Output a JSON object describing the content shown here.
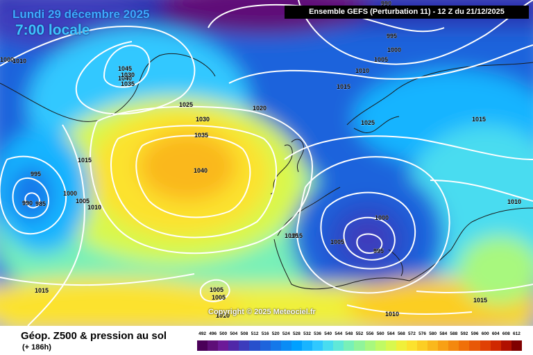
{
  "header": {
    "date": "Lundi 29 décembre 2025",
    "local_time": "7:00 locale",
    "run_info": "Ensemble GEFS  (Perturbation 11)  -  12 Z du 21/12/2025"
  },
  "footer": {
    "variable": "Géop. Z500 & pression au sol",
    "forecast_step": "(+ 186h)",
    "copyright": "Copyright © 2025 Meteociel.fr"
  },
  "isobar_labels": [
    "990",
    "995",
    "1000",
    "1005",
    "1010",
    "1015",
    "1000",
    "1010",
    "1045",
    "1040",
    "1035",
    "1030",
    "1025",
    "1020",
    "1015",
    "1025",
    "1030",
    "1035",
    "1040",
    "1015",
    "995",
    "1000",
    "1005",
    "1010",
    "990",
    "985",
    "1015",
    "1005",
    "1000",
    "1005",
    "995",
    "1015",
    "1015",
    "1010",
    "1015",
    "1005",
    "1010",
    "1010"
  ],
  "legend": {
    "values": [
      "492",
      "496",
      "500",
      "504",
      "508",
      "512",
      "516",
      "520",
      "524",
      "528",
      "532",
      "536",
      "540",
      "544",
      "548",
      "552",
      "556",
      "560",
      "564",
      "568",
      "572",
      "576",
      "580",
      "584",
      "588",
      "592",
      "596",
      "600",
      "604",
      "608",
      "612"
    ],
    "colors": [
      "#4a0058",
      "#5e0e78",
      "#6c1a98",
      "#5028a8",
      "#3c3cbc",
      "#2850cc",
      "#1e64dc",
      "#1478ea",
      "#0a8cf5",
      "#00a0ff",
      "#18b4ff",
      "#30c8ff",
      "#48dcf0",
      "#60e8d8",
      "#78f0b8",
      "#90f49a",
      "#a8f87e",
      "#c0fa64",
      "#d8f84e",
      "#f0f03a",
      "#fce22e",
      "#fcce24",
      "#fab81c",
      "#f8a014",
      "#f4880e",
      "#f07008",
      "#e85806",
      "#e04004",
      "#d02800",
      "#b01000",
      "#800000"
    ]
  },
  "colors": {
    "title_blue": "#3fa9ff",
    "isobar": "#ffffff",
    "coast": "#1a1a1a"
  }
}
